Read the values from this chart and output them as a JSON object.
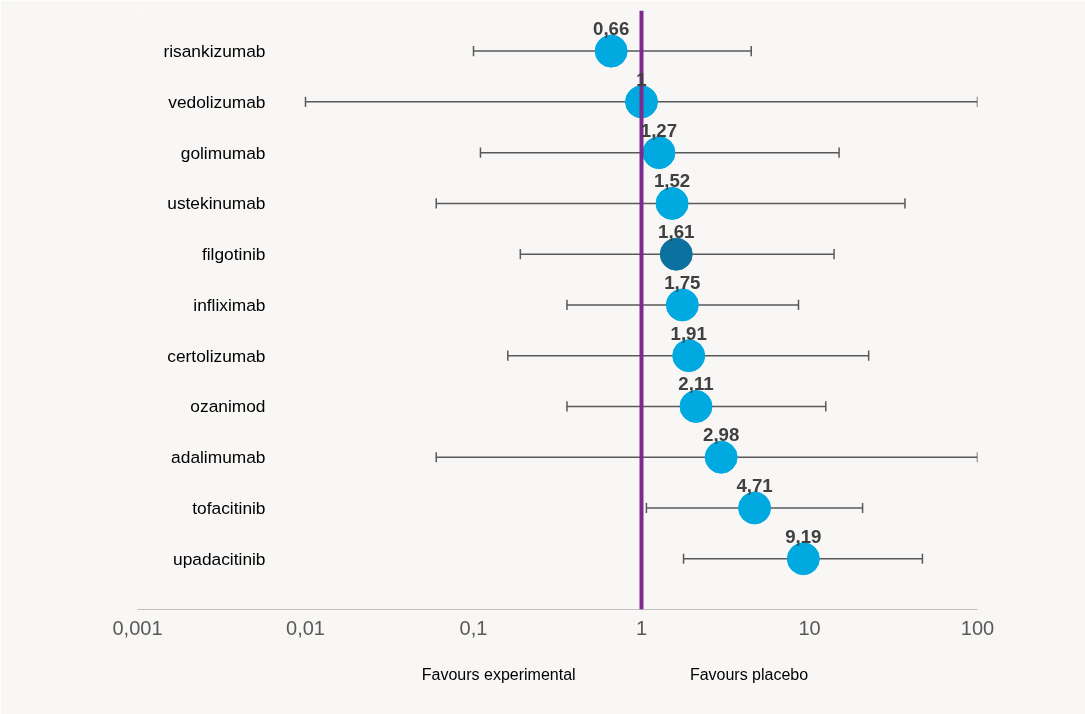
{
  "chart_data": {
    "type": "scatter",
    "orientation": "horizontal",
    "log": "x",
    "categories": [
      "risankizumab",
      "vedolizumab",
      "golimumab",
      "ustekinumab",
      "filgotinib",
      "infliximab",
      "certolizumab",
      "ozanimod",
      "adalimumab",
      "tofacitinib",
      "upadacitinib"
    ],
    "values": [
      0.66,
      1,
      1.27,
      1.52,
      1.61,
      1.75,
      1.91,
      2.11,
      2.98,
      4.71,
      9.19
    ],
    "value_labels": [
      "0,66",
      "1",
      "1,27",
      "1,52",
      "1,61",
      "1,75",
      "1,91",
      "2,11",
      "2,98",
      "4,71",
      "9,19"
    ],
    "errors": [
      [
        0.1,
        4.5
      ],
      [
        0.01,
        100
      ],
      [
        0.11,
        15
      ],
      [
        0.06,
        37
      ],
      [
        0.19,
        14
      ],
      [
        0.36,
        8.6
      ],
      [
        0.16,
        22.5
      ],
      [
        0.36,
        12.5
      ],
      [
        0.06,
        100
      ],
      [
        1.07,
        20.7
      ],
      [
        1.78,
        47
      ]
    ],
    "colors": [
      "#00a9e0",
      "#00a9e0",
      "#00a9e0",
      "#00a9e0",
      "#0b72a0",
      "#00a9e0",
      "#00a9e0",
      "#00a9e0",
      "#00a9e0",
      "#00a9e0",
      "#00a9e0"
    ],
    "xlim": [
      0.001,
      100
    ],
    "xticks": [
      {
        "value": 0.001,
        "label": "0,001"
      },
      {
        "value": 0.01,
        "label": "0,01"
      },
      {
        "value": 0.1,
        "label": "0,1"
      },
      {
        "value": 1,
        "label": "1"
      },
      {
        "value": 10,
        "label": "10"
      },
      {
        "value": 100,
        "label": "100"
      }
    ],
    "ref_lines": [
      {
        "axis": "x",
        "value": 1,
        "color": "#7b2a8e"
      }
    ],
    "annotations": [
      "Favours experimental",
      "Favours placebo"
    ],
    "marker": "circle",
    "grid": false
  }
}
